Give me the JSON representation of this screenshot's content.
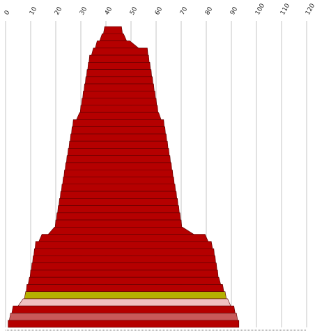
{
  "chart_data": {
    "type": "area",
    "title": "",
    "xlabel": "",
    "ylabel": "",
    "xlim": [
      0,
      120
    ],
    "x_ticks": [
      "0",
      "10",
      "20",
      "30",
      "40",
      "50",
      "60",
      "70",
      "80",
      "90",
      "100",
      "110",
      "120"
    ],
    "grid": "vertical",
    "default_color": "#b50000",
    "bands": [
      {
        "left": 39.5,
        "right": 46.2
      },
      {
        "left": 38.5,
        "right": 47.0
      },
      {
        "left": 36.5,
        "right": 49.5
      },
      {
        "left": 35.0,
        "right": 56.5
      },
      {
        "left": 33.5,
        "right": 57.0
      },
      {
        "left": 33.0,
        "right": 57.5
      },
      {
        "left": 32.5,
        "right": 58.0
      },
      {
        "left": 32.0,
        "right": 58.5
      },
      {
        "left": 31.5,
        "right": 59.0
      },
      {
        "left": 31.0,
        "right": 59.5
      },
      {
        "left": 30.5,
        "right": 60.0
      },
      {
        "left": 30.0,
        "right": 60.5
      },
      {
        "left": 29.5,
        "right": 61.0
      },
      {
        "left": 27.0,
        "right": 63.0
      },
      {
        "left": 26.5,
        "right": 63.5
      },
      {
        "left": 26.0,
        "right": 64.0
      },
      {
        "left": 25.5,
        "right": 64.5
      },
      {
        "left": 25.0,
        "right": 65.0
      },
      {
        "left": 24.5,
        "right": 65.5
      },
      {
        "left": 24.0,
        "right": 66.0
      },
      {
        "left": 23.5,
        "right": 66.5
      },
      {
        "left": 23.0,
        "right": 67.0
      },
      {
        "left": 22.5,
        "right": 67.5
      },
      {
        "left": 22.0,
        "right": 68.0
      },
      {
        "left": 21.5,
        "right": 68.5
      },
      {
        "left": 21.0,
        "right": 69.0
      },
      {
        "left": 20.5,
        "right": 69.5
      },
      {
        "left": 20.0,
        "right": 70.0
      },
      {
        "left": 19.5,
        "right": 70.5
      },
      {
        "left": 14.5,
        "right": 79.5
      },
      {
        "left": 12.0,
        "right": 82.0
      },
      {
        "left": 11.5,
        "right": 83.0
      },
      {
        "left": 11.0,
        "right": 83.5
      },
      {
        "left": 10.5,
        "right": 84.0
      },
      {
        "left": 10.0,
        "right": 84.5
      },
      {
        "left": 9.5,
        "right": 85.0
      },
      {
        "left": 8.5,
        "right": 86.5
      },
      {
        "left": 8.0,
        "right": 87.5,
        "color": "#b5b000"
      },
      {
        "left": 7.0,
        "right": 88.5,
        "color": "#f0c0c0"
      },
      {
        "left": 3.0,
        "right": 91.0
      },
      {
        "left": 2.0,
        "right": 92.0,
        "color": "#c85a5a"
      },
      {
        "left": 1.0,
        "right": 93.0
      }
    ]
  }
}
